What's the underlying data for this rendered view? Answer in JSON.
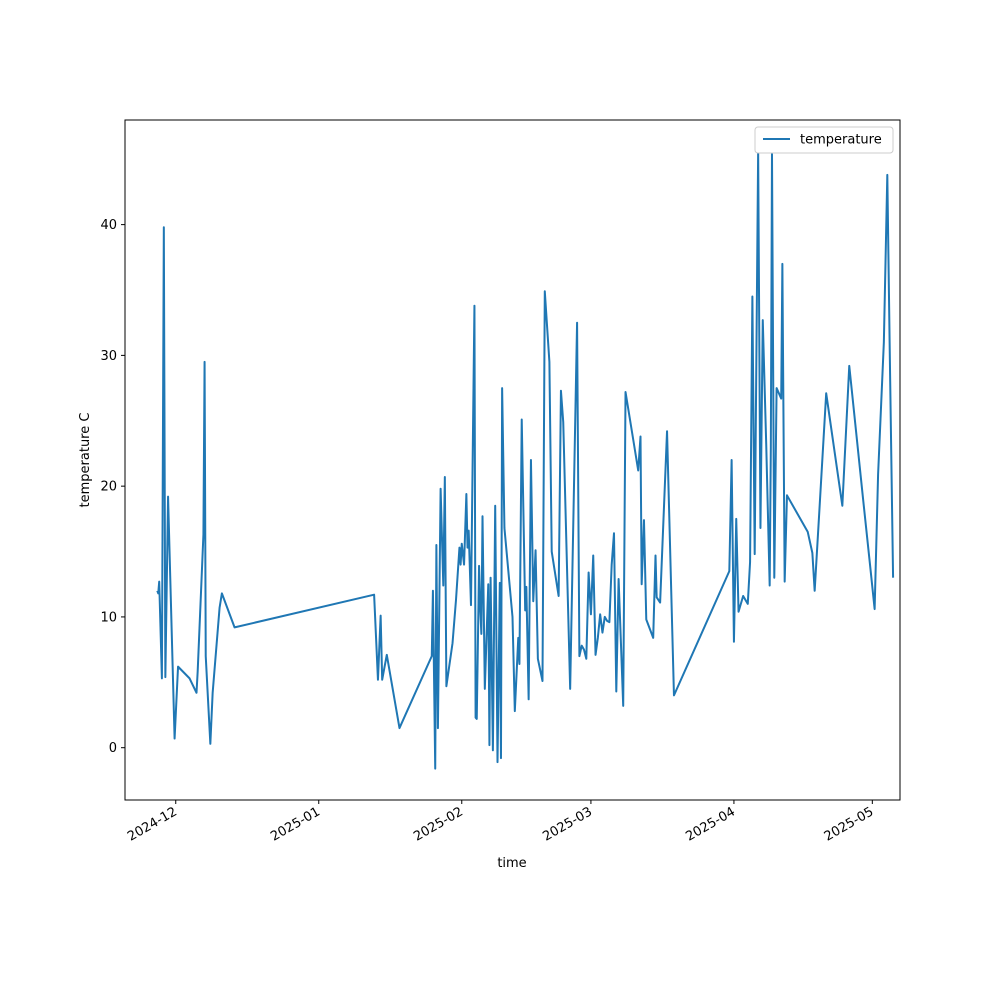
{
  "chart_data": {
    "type": "line",
    "title": "",
    "xlabel": "time",
    "ylabel": "temperature C",
    "x_tick_labels": [
      "2024-12",
      "2025-01",
      "2025-02",
      "2025-03",
      "2025-04",
      "2025-05"
    ],
    "y_tick_labels": [
      "0",
      "10",
      "20",
      "30",
      "40"
    ],
    "xlim": [
      "2024-11-20",
      "2025-05-07"
    ],
    "ylim": [
      -4,
      48
    ],
    "grid": false,
    "legend_position": "top-right",
    "series": [
      {
        "name": "temperature",
        "color": "#1f77b4",
        "points": [
          [
            "2024-11-27 00:00",
            12.0
          ],
          [
            "2024-11-27 05:00",
            11.8
          ],
          [
            "2024-11-27 10:00",
            12.7
          ],
          [
            "2024-11-27 16:00",
            9.5
          ],
          [
            "2024-11-28 00:00",
            5.3
          ],
          [
            "2024-11-28 10:00",
            39.8
          ],
          [
            "2024-11-28 18:00",
            5.4
          ],
          [
            "2024-11-29 08:00",
            19.2
          ],
          [
            "2024-11-30 18:00",
            0.7
          ],
          [
            "2024-12-01 12:00",
            6.2
          ],
          [
            "2024-12-04 00:00",
            5.3
          ],
          [
            "2024-12-05 12:00",
            4.2
          ],
          [
            "2024-12-05 18:00",
            5.8
          ],
          [
            "2024-12-07 00:00",
            16.3
          ],
          [
            "2024-12-07 06:00",
            29.5
          ],
          [
            "2024-12-07 12:00",
            7.0
          ],
          [
            "2024-12-08 12:00",
            0.3
          ],
          [
            "2024-12-09 00:00",
            4.2
          ],
          [
            "2024-12-10 12:00",
            10.7
          ],
          [
            "2024-12-11 00:00",
            11.8
          ],
          [
            "2024-12-13 18:00",
            9.2
          ],
          [
            "2025-01-13 00:00",
            11.7
          ],
          [
            "2025-01-13 20:00",
            5.2
          ],
          [
            "2025-01-14 10:00",
            10.1
          ],
          [
            "2025-01-14 18:00",
            5.2
          ],
          [
            "2025-01-15 18:00",
            7.1
          ],
          [
            "2025-01-18 12:00",
            1.5
          ],
          [
            "2025-01-25 12:00",
            7.0
          ],
          [
            "2025-01-25 18:00",
            12.0
          ],
          [
            "2025-01-26 06:00",
            -1.6
          ],
          [
            "2025-01-26 12:00",
            15.5
          ],
          [
            "2025-01-26 20:00",
            1.5
          ],
          [
            "2025-01-27 10:00",
            19.8
          ],
          [
            "2025-01-28 00:00",
            12.4
          ],
          [
            "2025-01-28 08:00",
            20.7
          ],
          [
            "2025-01-28 16:00",
            4.7
          ],
          [
            "2025-01-30 00:00",
            8.0
          ],
          [
            "2025-01-30 18:00",
            11.3
          ],
          [
            "2025-01-31 12:00",
            15.3
          ],
          [
            "2025-01-31 18:00",
            14.0
          ],
          [
            "2025-02-01 00:00",
            15.6
          ],
          [
            "2025-02-01 12:00",
            14.0
          ],
          [
            "2025-02-02 00:00",
            19.4
          ],
          [
            "2025-02-02 06:00",
            15.3
          ],
          [
            "2025-02-02 12:00",
            16.6
          ],
          [
            "2025-02-03 00:00",
            10.9
          ],
          [
            "2025-02-03 18:00",
            33.8
          ],
          [
            "2025-02-04 00:00",
            2.3
          ],
          [
            "2025-02-04 06:00",
            2.2
          ],
          [
            "2025-02-04 18:00",
            13.9
          ],
          [
            "2025-02-05 00:00",
            10.7
          ],
          [
            "2025-02-05 06:00",
            8.7
          ],
          [
            "2025-02-05 12:00",
            17.7
          ],
          [
            "2025-02-06 00:00",
            4.5
          ],
          [
            "2025-02-06 18:00",
            12.5
          ],
          [
            "2025-02-07 00:00",
            0.2
          ],
          [
            "2025-02-07 06:00",
            13.0
          ],
          [
            "2025-02-07 18:00",
            -0.2
          ],
          [
            "2025-02-08 06:00",
            18.5
          ],
          [
            "2025-02-08 18:00",
            -1.1
          ],
          [
            "2025-02-09 06:00",
            12.6
          ],
          [
            "2025-02-09 12:00",
            -0.8
          ],
          [
            "2025-02-09 18:00",
            27.5
          ],
          [
            "2025-02-10 06:00",
            16.8
          ],
          [
            "2025-02-12 00:00",
            10.0
          ],
          [
            "2025-02-12 12:00",
            2.8
          ],
          [
            "2025-02-13 06:00",
            8.4
          ],
          [
            "2025-02-13 12:00",
            6.4
          ],
          [
            "2025-02-14 00:00",
            25.1
          ],
          [
            "2025-02-14 18:00",
            10.5
          ],
          [
            "2025-02-15 00:00",
            12.3
          ],
          [
            "2025-02-15 12:00",
            3.7
          ],
          [
            "2025-02-16 00:00",
            22.0
          ],
          [
            "2025-02-16 12:00",
            11.2
          ],
          [
            "2025-02-17 00:00",
            15.1
          ],
          [
            "2025-02-17 12:00",
            6.8
          ],
          [
            "2025-02-18 12:00",
            5.1
          ],
          [
            "2025-02-19 00:00",
            34.9
          ],
          [
            "2025-02-20 00:00",
            29.5
          ],
          [
            "2025-02-20 12:00",
            15.0
          ],
          [
            "2025-02-22 00:00",
            11.6
          ],
          [
            "2025-02-22 12:00",
            27.3
          ],
          [
            "2025-02-23 00:00",
            24.9
          ],
          [
            "2025-02-24 12:00",
            4.5
          ],
          [
            "2025-02-26 00:00",
            32.5
          ],
          [
            "2025-02-26 12:00",
            7.0
          ],
          [
            "2025-02-27 00:00",
            7.8
          ],
          [
            "2025-02-27 12:00",
            7.5
          ],
          [
            "2025-02-28 00:00",
            6.8
          ],
          [
            "2025-02-28 12:00",
            13.4
          ],
          [
            "2025-03-01 00:00",
            10.2
          ],
          [
            "2025-03-01 12:00",
            14.7
          ],
          [
            "2025-03-02 00:00",
            7.1
          ],
          [
            "2025-03-02 12:00",
            8.4
          ],
          [
            "2025-03-03 00:00",
            10.2
          ],
          [
            "2025-03-03 12:00",
            8.8
          ],
          [
            "2025-03-04 00:00",
            10.0
          ],
          [
            "2025-03-04 12:00",
            9.7
          ],
          [
            "2025-03-05 00:00",
            9.6
          ],
          [
            "2025-03-05 12:00",
            14.0
          ],
          [
            "2025-03-06 00:00",
            16.4
          ],
          [
            "2025-03-06 12:00",
            4.3
          ],
          [
            "2025-03-07 00:00",
            12.9
          ],
          [
            "2025-03-08 00:00",
            3.2
          ],
          [
            "2025-03-08 12:00",
            27.2
          ],
          [
            "2025-03-11 06:00",
            21.2
          ],
          [
            "2025-03-11 18:00",
            23.8
          ],
          [
            "2025-03-12 00:00",
            12.5
          ],
          [
            "2025-03-12 12:00",
            17.4
          ],
          [
            "2025-03-13 00:00",
            9.8
          ],
          [
            "2025-03-14 12:00",
            8.4
          ],
          [
            "2025-03-15 00:00",
            14.7
          ],
          [
            "2025-03-15 06:00",
            11.5
          ],
          [
            "2025-03-16 00:00",
            11.1
          ],
          [
            "2025-03-17 12:00",
            24.2
          ],
          [
            "2025-03-19 00:00",
            4.0
          ],
          [
            "2025-03-31 00:00",
            13.5
          ],
          [
            "2025-03-31 12:00",
            22.0
          ],
          [
            "2025-04-01 00:00",
            8.1
          ],
          [
            "2025-04-01 12:00",
            17.5
          ],
          [
            "2025-04-02 00:00",
            10.4
          ],
          [
            "2025-04-03 00:00",
            11.6
          ],
          [
            "2025-04-04 00:00",
            11.0
          ],
          [
            "2025-04-04 12:00",
            14.2
          ],
          [
            "2025-04-05 00:00",
            34.5
          ],
          [
            "2025-04-05 12:00",
            14.8
          ],
          [
            "2025-04-06 06:00",
            45.6
          ],
          [
            "2025-04-06 18:00",
            16.8
          ],
          [
            "2025-04-07 06:00",
            32.7
          ],
          [
            "2025-04-08 00:00",
            23.2
          ],
          [
            "2025-04-08 18:00",
            12.4
          ],
          [
            "2025-04-09 00:00",
            23.0
          ],
          [
            "2025-04-09 06:00",
            45.4
          ],
          [
            "2025-04-09 18:00",
            13.0
          ],
          [
            "2025-04-10 06:00",
            27.5
          ],
          [
            "2025-04-11 00:00",
            26.9
          ],
          [
            "2025-04-11 06:00",
            26.7
          ],
          [
            "2025-04-11 12:00",
            37.0
          ],
          [
            "2025-04-12 00:00",
            12.7
          ],
          [
            "2025-04-12 12:00",
            19.3
          ],
          [
            "2025-04-17 00:00",
            16.5
          ],
          [
            "2025-04-18 00:00",
            14.9
          ],
          [
            "2025-04-18 12:00",
            12.0
          ],
          [
            "2025-04-19 12:00",
            18.0
          ],
          [
            "2025-04-21 00:00",
            27.1
          ],
          [
            "2025-04-24 12:00",
            18.5
          ],
          [
            "2025-04-26 00:00",
            29.2
          ],
          [
            "2025-04-29 00:00",
            19.0
          ],
          [
            "2025-04-30 12:00",
            14.0
          ],
          [
            "2025-05-01 12:00",
            10.6
          ],
          [
            "2025-05-02 06:00",
            20.9
          ],
          [
            "2025-05-03 12:00",
            31.0
          ],
          [
            "2025-05-04 06:00",
            43.8
          ],
          [
            "2025-05-04 18:00",
            31.0
          ],
          [
            "2025-05-05 12:00",
            13.0
          ]
        ]
      }
    ]
  }
}
